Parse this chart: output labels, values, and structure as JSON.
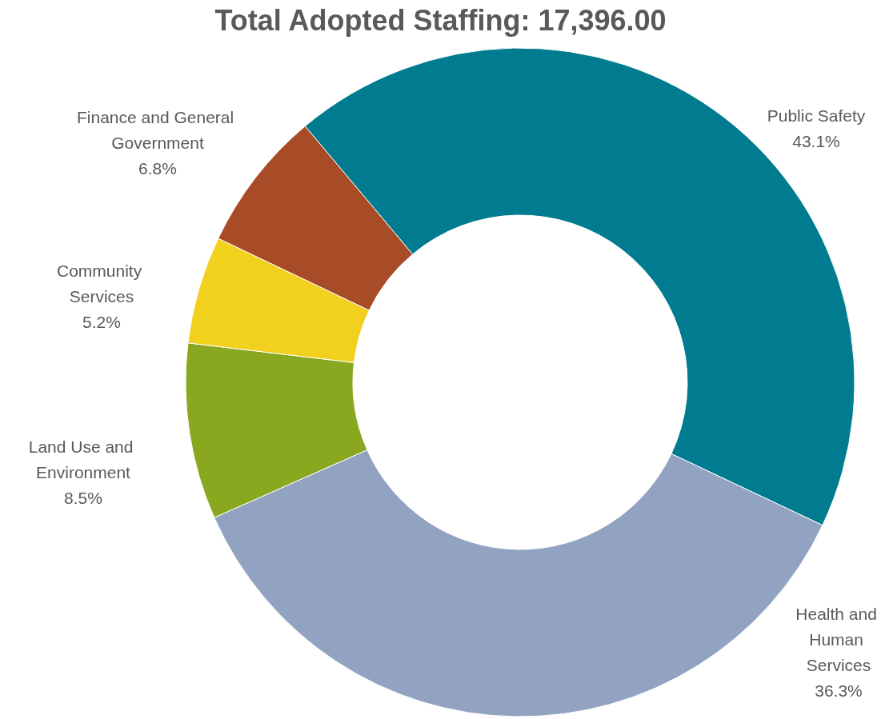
{
  "chart_data": {
    "type": "donut",
    "title": "Total Adopted Staffing: 17,396.00",
    "categories": [
      "Public Safety",
      "Health and Human Services",
      "Land Use and Environment",
      "Community Services",
      "Finance and General Government"
    ],
    "values": [
      43.1,
      36.3,
      8.5,
      5.2,
      6.8
    ],
    "value_labels": [
      "43.1%",
      "36.3%",
      "8.5%",
      "5.2%",
      "6.8%"
    ],
    "colors": [
      "#007b8f",
      "#91a3c1",
      "#8aa720",
      "#f2d01e",
      "#a84b27"
    ]
  }
}
